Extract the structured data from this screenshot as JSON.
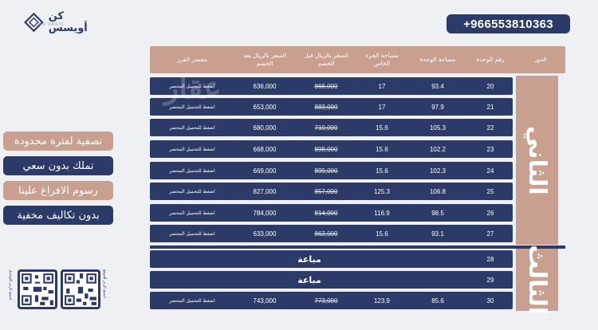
{
  "header": {
    "phone": "+966553810363",
    "logo_text": "كن أويسس",
    "logo_sub": "KUN OASIS"
  },
  "promos": [
    "تصفية لفترة محدودة",
    "تملك بدون سعي",
    "رسوم الافراغ علينا",
    "بدون تكاليف مخفية"
  ],
  "qr_captions": [
    "امسح الرمز للتواصل",
    "امسح الرمز للموقع"
  ],
  "watermark": "عقار",
  "table": {
    "headers": {
      "floor": "الدور",
      "unit_no": "رقم الوحدة",
      "unit_area": "مساحة الوحدة",
      "private_area": "مساحة الجزء الخاص",
      "price_before": "السعر بالريال قبل الخصم",
      "price_after": "السعر بالريال بعد الخصم",
      "reservation": "محضر الفرز"
    },
    "floors": [
      {
        "name": "الثاني"
      },
      {
        "name": "الثالث"
      }
    ],
    "rows": [
      {
        "unit": "20",
        "area": "93.4",
        "private": "17",
        "before": "866,000",
        "after": "636,000",
        "link": "اضغط للتحميل المحضر"
      },
      {
        "unit": "21",
        "area": "97.9",
        "private": "17",
        "before": "883,000",
        "after": "653,000",
        "link": "اضغط للتحميل المحضر"
      },
      {
        "unit": "22",
        "area": "105.3",
        "private": "15.6",
        "before": "710,000",
        "after": "680,000",
        "link": "اضغط للتحميل المحضر"
      },
      {
        "unit": "23",
        "area": "102.2",
        "private": "15.6",
        "before": "898,000",
        "after": "668,000",
        "link": "اضغط للتحميل المحضر"
      },
      {
        "unit": "24",
        "area": "102.3",
        "private": "15.6",
        "before": "899,000",
        "after": "669,000",
        "link": "اضغط للتحميل المحضر"
      },
      {
        "unit": "25",
        "area": "106.8",
        "private": "125.3",
        "before": "857,000",
        "after": "827,000",
        "link": "اضغط للتحميل المحضر"
      },
      {
        "unit": "26",
        "area": "98.5",
        "private": "116.9",
        "before": "814,000",
        "after": "784,000",
        "link": "اضغط للتحميل المحضر"
      },
      {
        "unit": "27",
        "area": "93.1",
        "private": "15.6",
        "before": "863,000",
        "after": "633,000",
        "link": "اضغط للتحميل المحضر"
      },
      {
        "unit": "28",
        "sold": "مباعة"
      },
      {
        "unit": "29",
        "sold": "مباعة"
      },
      {
        "unit": "30",
        "area": "85.6",
        "private": "123.9",
        "before": "773,000",
        "after": "743,000",
        "link": "اضغط للتحميل المحضر"
      }
    ]
  },
  "colors": {
    "navy": "#2b3a67",
    "tan": "#c9a090",
    "background": "#eef0f3"
  }
}
